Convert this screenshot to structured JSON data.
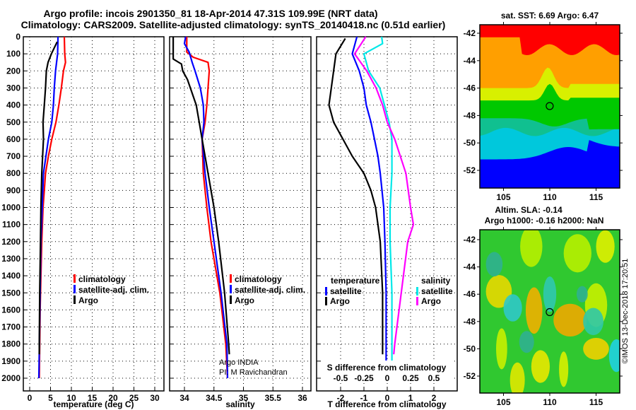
{
  "title": {
    "line1": "Argo profile: incois 2901350_81 18-Apr-2014 47.31S 109.99E (NRT data)",
    "line2": "Climatology: CARS2009. Satellite-adjusted climatology: synTS_20140418.nc (0.51d earlier)"
  },
  "colors": {
    "climatology": "#ff0000",
    "satellite": "#0000ff",
    "argo": "#000000",
    "sat_salinity": "#00e8e8",
    "argo_salinity": "#ff00ff"
  },
  "chart_data": [
    {
      "type": "line",
      "name": "temperature-profile",
      "xlabel": "temperature (deg C)",
      "ylabel": "depth",
      "xlim": [
        -1,
        32
      ],
      "ylim": [
        2070,
        0
      ],
      "xticks": [
        "0",
        "5",
        "10",
        "15",
        "20",
        "25",
        "30"
      ],
      "yticks": [
        "0",
        "100",
        "200",
        "300",
        "400",
        "500",
        "600",
        "700",
        "800",
        "900",
        "1000",
        "1100",
        "1200",
        "1300",
        "1400",
        "1500",
        "1600",
        "1700",
        "1800",
        "1900",
        "2000"
      ],
      "grid": true,
      "legend": {
        "placement": "bottom-center",
        "entries": [
          "climatology",
          "satellite-adj. clim.",
          "Argo"
        ]
      },
      "series": [
        {
          "name": "climatology",
          "color": "#ff0000",
          "points": [
            [
              8.3,
              0
            ],
            [
              8.4,
              100
            ],
            [
              8.6,
              150
            ],
            [
              8.1,
              200
            ],
            [
              7.6,
              300
            ],
            [
              7.0,
              400
            ],
            [
              6.3,
              500
            ],
            [
              5.3,
              600
            ],
            [
              4.5,
              700
            ],
            [
              3.8,
              800
            ],
            [
              3.5,
              900
            ],
            [
              3.2,
              1000
            ],
            [
              2.9,
              1200
            ],
            [
              2.7,
              1400
            ],
            [
              2.5,
              1600
            ],
            [
              2.4,
              1800
            ],
            [
              2.3,
              2000
            ]
          ]
        },
        {
          "name": "satellite-adj. clim.",
          "color": "#0000ff",
          "points": [
            [
              6.8,
              0
            ],
            [
              6.7,
              100
            ],
            [
              6.2,
              200
            ],
            [
              5.9,
              300
            ],
            [
              5.7,
              400
            ],
            [
              5.3,
              500
            ],
            [
              4.5,
              600
            ],
            [
              3.9,
              700
            ],
            [
              3.3,
              800
            ],
            [
              3.0,
              1000
            ],
            [
              2.7,
              1200
            ],
            [
              2.5,
              1500
            ],
            [
              2.2,
              2000
            ]
          ]
        },
        {
          "name": "Argo",
          "color": "#000000",
          "points": [
            [
              6.6,
              30
            ],
            [
              5.2,
              100
            ],
            [
              4.4,
              150
            ],
            [
              4.0,
              200
            ],
            [
              3.8,
              300
            ],
            [
              3.5,
              400
            ],
            [
              3.2,
              500
            ],
            [
              3.3,
              600
            ],
            [
              3.1,
              700
            ],
            [
              2.9,
              800
            ],
            [
              2.7,
              1000
            ],
            [
              2.6,
              1200
            ],
            [
              2.4,
              1500
            ],
            [
              2.3,
              1800
            ],
            [
              2.3,
              1860
            ]
          ]
        }
      ]
    },
    {
      "type": "line",
      "name": "salinity-profile",
      "xlabel": "salinity",
      "xlim": [
        33.75,
        36.15
      ],
      "ylim": [
        2070,
        0
      ],
      "xticks": [
        "34",
        "34.5",
        "35",
        "35.5",
        "36"
      ],
      "grid": true,
      "legend": {
        "placement": "bottom-right",
        "entries": [
          "climatology",
          "satellite-adj. clim.",
          "Argo"
        ]
      },
      "annotations": [
        "Argo INDIA",
        "PI: M Ravichandran"
      ],
      "series": [
        {
          "name": "climatology",
          "color": "#ff0000",
          "points": [
            [
              34.04,
              0
            ],
            [
              34.04,
              90
            ],
            [
              34.15,
              120
            ],
            [
              34.4,
              150
            ],
            [
              34.42,
              200
            ],
            [
              34.4,
              300
            ],
            [
              34.38,
              400
            ],
            [
              34.35,
              500
            ],
            [
              34.3,
              600
            ],
            [
              34.32,
              800
            ],
            [
              34.38,
              1000
            ],
            [
              34.45,
              1200
            ],
            [
              34.6,
              1500
            ],
            [
              34.7,
              1800
            ],
            [
              34.73,
              2000
            ]
          ]
        },
        {
          "name": "satellite-adj. clim.",
          "color": "#0000ff",
          "points": [
            [
              34.02,
              0
            ],
            [
              34.0,
              40
            ],
            [
              34.08,
              90
            ],
            [
              34.13,
              150
            ],
            [
              34.18,
              200
            ],
            [
              34.27,
              300
            ],
            [
              34.32,
              400
            ],
            [
              34.33,
              500
            ],
            [
              34.3,
              600
            ],
            [
              34.35,
              800
            ],
            [
              34.42,
              1000
            ],
            [
              34.5,
              1200
            ],
            [
              34.62,
              1500
            ],
            [
              34.72,
              1800
            ],
            [
              34.73,
              2000
            ]
          ]
        },
        {
          "name": "Argo",
          "color": "#000000",
          "points": [
            [
              33.81,
              0
            ],
            [
              33.81,
              130
            ],
            [
              33.95,
              160
            ],
            [
              33.97,
              200
            ],
            [
              34.05,
              250
            ],
            [
              34.1,
              300
            ],
            [
              34.2,
              400
            ],
            [
              34.25,
              500
            ],
            [
              34.3,
              600
            ],
            [
              34.4,
              800
            ],
            [
              34.5,
              1000
            ],
            [
              34.58,
              1200
            ],
            [
              34.68,
              1500
            ],
            [
              34.75,
              1800
            ],
            [
              34.76,
              1860
            ]
          ]
        }
      ]
    },
    {
      "type": "line",
      "name": "difference-profile",
      "xlabel": "T difference from climatology",
      "xlabel2": "S difference from climatology",
      "xlim": [
        -3,
        3
      ],
      "ylim": [
        2070,
        0
      ],
      "xticks": [
        "-2",
        "-1",
        "0",
        "1",
        "2"
      ],
      "xticks2": [
        "-0.5",
        "-0.25",
        "0",
        "0.25",
        "0.5"
      ],
      "grid": true,
      "legend": {
        "placement": "bottom",
        "temperature_title": "temperature",
        "salinity_title": "salinity",
        "entries": [
          "satellite",
          "Argo"
        ]
      },
      "series": [
        {
          "name": "temperature Argo",
          "color": "#000000",
          "points": [
            [
              -1.8,
              10
            ],
            [
              -2.2,
              100
            ],
            [
              -2.4,
              300
            ],
            [
              -2.5,
              400
            ],
            [
              -2.3,
              500
            ],
            [
              -1.9,
              600
            ],
            [
              -1.5,
              700
            ],
            [
              -1.0,
              800
            ],
            [
              -0.7,
              900
            ],
            [
              -0.5,
              1000
            ],
            [
              -0.3,
              1200
            ],
            [
              -0.2,
              1500
            ],
            [
              -0.2,
              1860
            ]
          ]
        },
        {
          "name": "temperature satellite",
          "color": "#0000ff",
          "points": [
            [
              -1.3,
              0
            ],
            [
              -1.5,
              100
            ],
            [
              -1.2,
              200
            ],
            [
              -1.0,
              300
            ],
            [
              -0.9,
              400
            ],
            [
              -0.7,
              500
            ],
            [
              -0.55,
              600
            ],
            [
              -0.4,
              700
            ],
            [
              -0.3,
              800
            ],
            [
              -0.15,
              1000
            ],
            [
              -0.1,
              1200
            ],
            [
              -0.05,
              1500
            ],
            [
              -0.05,
              2000
            ]
          ]
        },
        {
          "name": "salinity satellite",
          "color": "#00e8e8",
          "points": [
            [
              -0.06,
              0
            ],
            [
              -0.05,
              40
            ],
            [
              -0.25,
              100
            ],
            [
              -0.2,
              200
            ],
            [
              -0.08,
              300
            ],
            [
              -0.03,
              400
            ],
            [
              0.02,
              500
            ],
            [
              0.05,
              600
            ],
            [
              0.05,
              800
            ],
            [
              0.03,
              1000
            ],
            [
              0.03,
              1200
            ],
            [
              0.05,
              1500
            ],
            [
              0.05,
              2000
            ]
          ]
        },
        {
          "name": "salinity Argo",
          "color": "#ff00ff",
          "points": [
            [
              -0.23,
              0
            ],
            [
              -0.35,
              100
            ],
            [
              -0.22,
              200
            ],
            [
              -0.12,
              300
            ],
            [
              -0.05,
              400
            ],
            [
              0.0,
              500
            ],
            [
              0.08,
              600
            ],
            [
              0.2,
              800
            ],
            [
              0.25,
              1000
            ],
            [
              0.28,
              1100
            ],
            [
              0.22,
              1200
            ],
            [
              0.15,
              1500
            ],
            [
              0.08,
              1800
            ],
            [
              0.07,
              1860
            ]
          ]
        }
      ]
    },
    {
      "type": "heatmap",
      "name": "sst-map",
      "title": "sat. SST: 6.69 Argo: 6.47",
      "xticks": [
        "105",
        "110",
        "115"
      ],
      "yticks": [
        "-42",
        "-44",
        "-46",
        "-48",
        "-50",
        "-52"
      ],
      "xlim": [
        102.4,
        117.5
      ],
      "ylim": [
        -53.3,
        -41.4
      ],
      "marker": {
        "lon": 109.99,
        "lat": -47.31
      }
    },
    {
      "type": "heatmap",
      "name": "sla-map",
      "title": "Altim. SLA: -0.14",
      "subtitle": "Argo h1000: -0.16 h2000: NaN",
      "xticks": [
        "105",
        "110",
        "115"
      ],
      "yticks": [
        "-42",
        "-44",
        "-46",
        "-48",
        "-50",
        "-52"
      ],
      "xlim": [
        102.4,
        117.5
      ],
      "ylim": [
        -53.3,
        -41.4
      ],
      "marker": {
        "lon": 109.99,
        "lat": -47.31
      }
    }
  ],
  "credit": "©IMOS 13-Dec-2018 17:20:51"
}
